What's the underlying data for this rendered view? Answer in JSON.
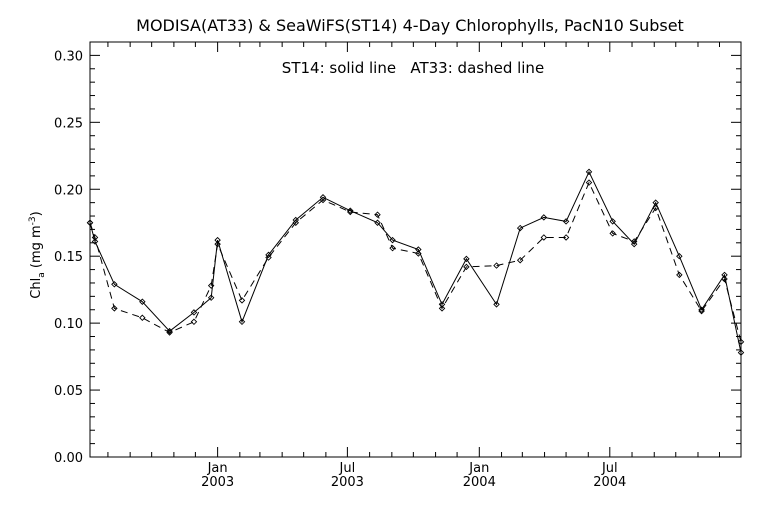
{
  "chart_data": {
    "type": "line",
    "title": "MODISA(AT33) & SeaWiFS(ST14) 4-Day Chlorophylls, PacN10 Subset",
    "annotation": "ST14: solid line   AT33: dashed line",
    "ylabel": {
      "main": "Chl",
      "sub": "a",
      "units_pre": " (mg m",
      "units_sup": "-3",
      "units_post": ")"
    },
    "ylim": [
      0.0,
      0.31
    ],
    "yticks": [
      "0.00",
      "0.05",
      "0.10",
      "0.15",
      "0.20",
      "0.25",
      "0.30"
    ],
    "xlim": [
      "2002-07-07",
      "2004-12-31"
    ],
    "xticks": [
      {
        "date": "2003-01-01",
        "month": "Jan",
        "year": "2003"
      },
      {
        "date": "2003-07-01",
        "month": "Jul",
        "year": "2003"
      },
      {
        "date": "2004-01-01",
        "month": "Jan",
        "year": "2004"
      },
      {
        "date": "2004-07-01",
        "month": "Jul",
        "year": "2004"
      }
    ],
    "series": [
      {
        "name": "ST14",
        "style": "solid",
        "color": "#000000",
        "points": [
          {
            "x": "2002-07-07",
            "y": 0.175
          },
          {
            "x": "2002-07-14",
            "y": 0.161
          },
          {
            "x": "2002-08-10",
            "y": 0.129
          },
          {
            "x": "2002-09-18",
            "y": 0.116
          },
          {
            "x": "2002-10-26",
            "y": 0.094
          },
          {
            "x": "2002-11-29",
            "y": 0.108
          },
          {
            "x": "2002-12-23",
            "y": 0.119
          },
          {
            "x": "2003-01-01",
            "y": 0.162
          },
          {
            "x": "2003-02-04",
            "y": 0.101
          },
          {
            "x": "2003-03-13",
            "y": 0.151
          },
          {
            "x": "2003-04-20",
            "y": 0.177
          },
          {
            "x": "2003-05-28",
            "y": 0.194
          },
          {
            "x": "2003-07-05",
            "y": 0.184
          },
          {
            "x": "2003-08-12",
            "y": 0.175
          },
          {
            "x": "2003-09-02",
            "y": 0.162
          },
          {
            "x": "2003-10-08",
            "y": 0.155
          },
          {
            "x": "2003-11-10",
            "y": 0.114
          },
          {
            "x": "2003-12-14",
            "y": 0.148
          },
          {
            "x": "2004-01-25",
            "y": 0.114
          },
          {
            "x": "2004-02-27",
            "y": 0.171
          },
          {
            "x": "2004-03-31",
            "y": 0.179
          },
          {
            "x": "2004-05-01",
            "y": 0.176
          },
          {
            "x": "2004-06-02",
            "y": 0.213
          },
          {
            "x": "2004-07-05",
            "y": 0.176
          },
          {
            "x": "2004-08-04",
            "y": 0.159
          },
          {
            "x": "2004-09-03",
            "y": 0.19
          },
          {
            "x": "2004-10-06",
            "y": 0.15
          },
          {
            "x": "2004-11-06",
            "y": 0.11
          },
          {
            "x": "2004-12-08",
            "y": 0.136
          },
          {
            "x": "2004-12-31",
            "y": 0.078
          }
        ]
      },
      {
        "name": "AT33",
        "style": "dashed",
        "color": "#000000",
        "points": [
          {
            "x": "2002-07-07",
            "y": 0.175
          },
          {
            "x": "2002-07-14",
            "y": 0.164
          },
          {
            "x": "2002-08-10",
            "y": 0.111
          },
          {
            "x": "2002-09-18",
            "y": 0.104
          },
          {
            "x": "2002-10-26",
            "y": 0.093
          },
          {
            "x": "2002-11-29",
            "y": 0.101
          },
          {
            "x": "2002-12-23",
            "y": 0.128
          },
          {
            "x": "2003-01-01",
            "y": 0.159
          },
          {
            "x": "2003-02-04",
            "y": 0.117
          },
          {
            "x": "2003-03-13",
            "y": 0.149
          },
          {
            "x": "2003-04-20",
            "y": 0.175
          },
          {
            "x": "2003-05-28",
            "y": 0.192
          },
          {
            "x": "2003-07-05",
            "y": 0.183
          },
          {
            "x": "2003-08-12",
            "y": 0.181
          },
          {
            "x": "2003-09-02",
            "y": 0.156
          },
          {
            "x": "2003-10-08",
            "y": 0.152
          },
          {
            "x": "2003-11-10",
            "y": 0.111
          },
          {
            "x": "2003-12-14",
            "y": 0.142
          },
          {
            "x": "2004-01-25",
            "y": 0.143
          },
          {
            "x": "2004-02-27",
            "y": 0.147
          },
          {
            "x": "2004-03-31",
            "y": 0.164
          },
          {
            "x": "2004-05-01",
            "y": 0.164
          },
          {
            "x": "2004-06-02",
            "y": 0.205
          },
          {
            "x": "2004-07-05",
            "y": 0.167
          },
          {
            "x": "2004-08-04",
            "y": 0.161
          },
          {
            "x": "2004-09-03",
            "y": 0.186
          },
          {
            "x": "2004-10-06",
            "y": 0.136
          },
          {
            "x": "2004-11-06",
            "y": 0.109
          },
          {
            "x": "2004-12-08",
            "y": 0.133
          },
          {
            "x": "2004-12-31",
            "y": 0.086
          }
        ]
      }
    ],
    "grid": false,
    "markers": "diamond"
  }
}
